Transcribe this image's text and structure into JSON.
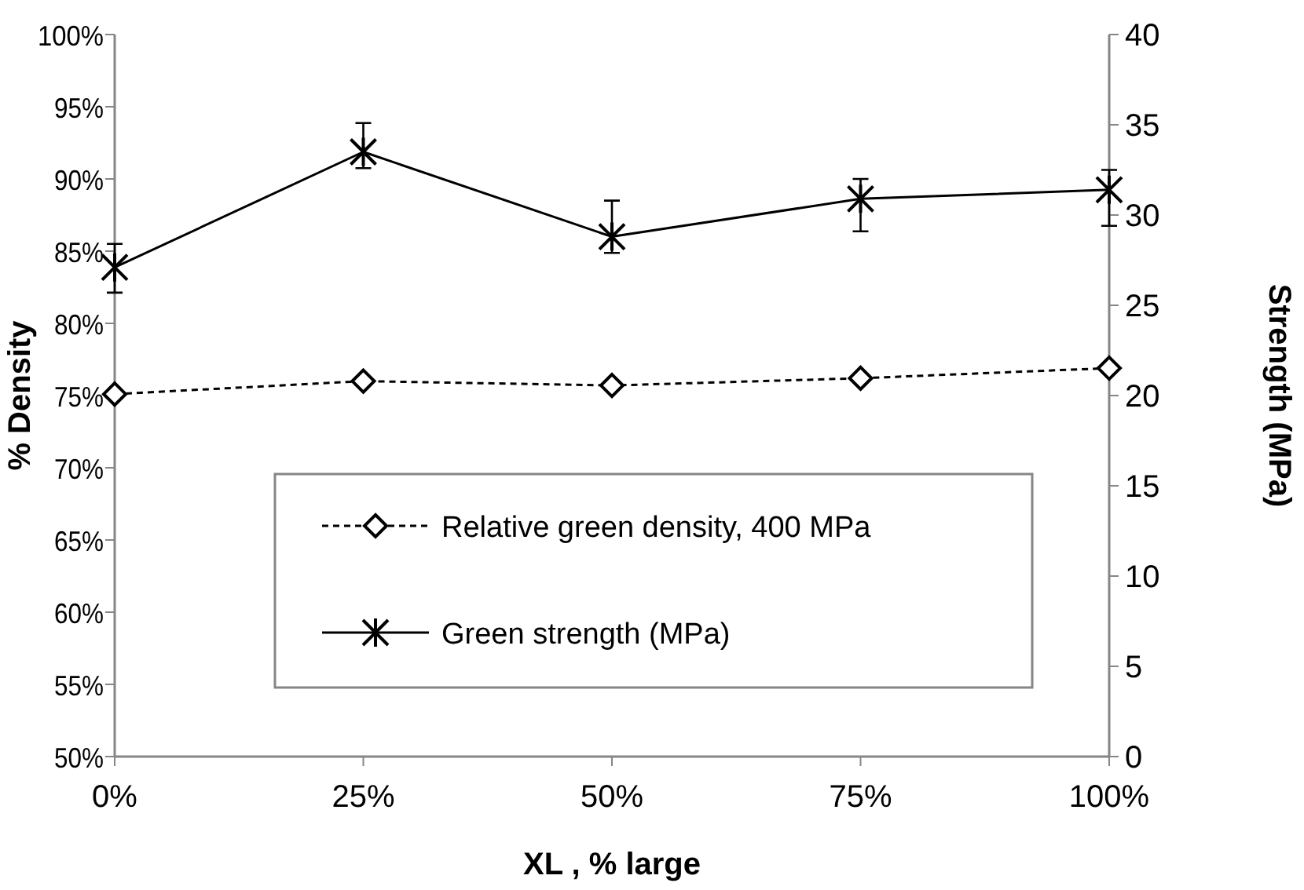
{
  "chart_data": {
    "type": "line",
    "xlabel": "XL , % large",
    "ylabel": "% Density",
    "y2label": "Strength (MPa)",
    "x": [
      0,
      25,
      50,
      75,
      100
    ],
    "xlim": [
      0,
      100
    ],
    "xticks": [
      {
        "value": 0,
        "label": "0%"
      },
      {
        "value": 25,
        "label": "25%"
      },
      {
        "value": 50,
        "label": "50%"
      },
      {
        "value": 75,
        "label": "75%"
      },
      {
        "value": 100,
        "label": "100%"
      }
    ],
    "ylim": [
      50,
      100
    ],
    "yticks": [
      {
        "value": 50,
        "label": "50%"
      },
      {
        "value": 55,
        "label": "55%"
      },
      {
        "value": 60,
        "label": "60%"
      },
      {
        "value": 65,
        "label": "65%"
      },
      {
        "value": 70,
        "label": "70%"
      },
      {
        "value": 75,
        "label": "75%"
      },
      {
        "value": 80,
        "label": "80%"
      },
      {
        "value": 85,
        "label": "85%"
      },
      {
        "value": 90,
        "label": "90%"
      },
      {
        "value": 95,
        "label": "95%"
      },
      {
        "value": 100,
        "label": "100%"
      }
    ],
    "y2lim": [
      0,
      40
    ],
    "y2ticks": [
      0,
      5,
      10,
      15,
      20,
      25,
      30,
      35,
      40
    ],
    "legend": "bottom",
    "grid": false,
    "series": [
      {
        "name": "Relative green density, 400 MPa",
        "color": "#000000",
        "values": [
          75.1,
          76.0,
          75.7,
          76.2,
          76.9
        ],
        "marker": "diamond",
        "line_style": "dashed"
      },
      {
        "name": "Green strength (MPa)",
        "color": "#000000",
        "values": [
          27.1,
          33.5,
          28.8,
          30.9,
          31.4
        ],
        "axis": "y2",
        "marker": "cross",
        "line_style": "solid",
        "errors": [
          [
            25.7,
            28.4
          ],
          [
            32.6,
            35.1
          ],
          [
            27.9,
            30.8
          ],
          [
            29.1,
            32.0
          ],
          [
            29.4,
            32.5
          ]
        ]
      }
    ]
  }
}
